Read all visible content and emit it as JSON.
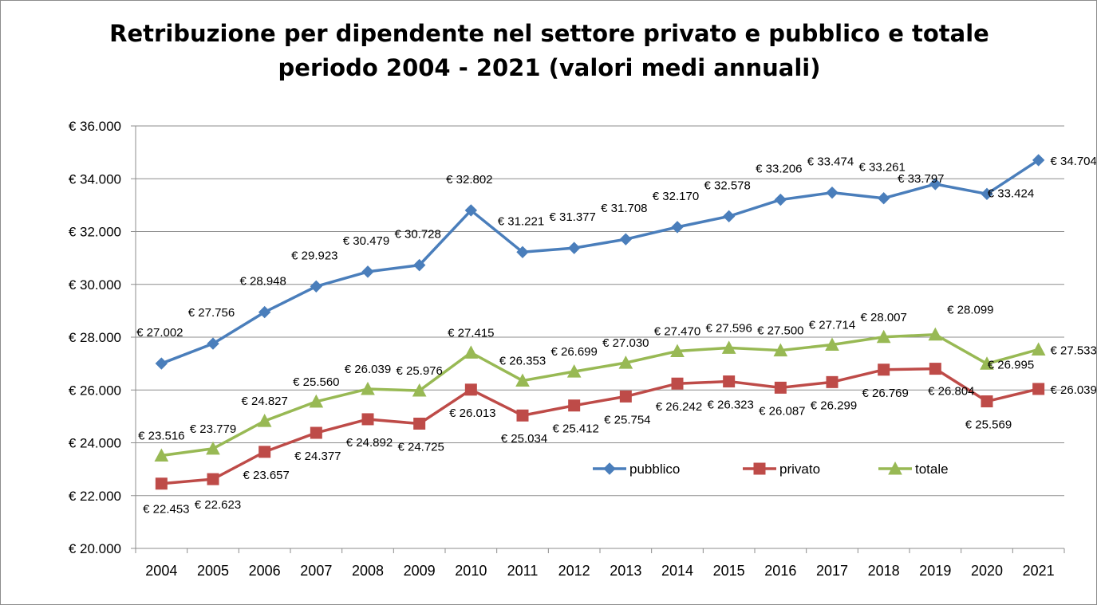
{
  "chart_data": {
    "type": "line",
    "title": [
      "Retribuzione per dipendente nel settore privato e pubblico e totale",
      "periodo 2004 - 2021 (valori medi annuali)"
    ],
    "xlabel": "",
    "ylabel": "",
    "ylim": [
      20000,
      36000
    ],
    "y_ticks": [
      {
        "value": 20000,
        "label": "€ 20.000"
      },
      {
        "value": 22000,
        "label": "€ 22.000"
      },
      {
        "value": 24000,
        "label": "€ 24.000"
      },
      {
        "value": 26000,
        "label": "€ 26.000"
      },
      {
        "value": 28000,
        "label": "€ 28.000"
      },
      {
        "value": 30000,
        "label": "€ 30.000"
      },
      {
        "value": 32000,
        "label": "€ 32.000"
      },
      {
        "value": 34000,
        "label": "€ 34.000"
      },
      {
        "value": 36000,
        "label": "€ 36.000"
      }
    ],
    "grid": true,
    "legend_position": "inside-lower-right",
    "categories": [
      "2004",
      "2005",
      "2006",
      "2007",
      "2008",
      "2009",
      "2010",
      "2011",
      "2012",
      "2013",
      "2014",
      "2015",
      "2016",
      "2017",
      "2018",
      "2019",
      "2020",
      "2021"
    ],
    "series": [
      {
        "name": "pubblico",
        "color": "#4a7ebb",
        "marker": "diamond",
        "values": [
          27002,
          27756,
          28948,
          29923,
          30479,
          30728,
          32802,
          31221,
          31377,
          31708,
          32170,
          32578,
          33206,
          33474,
          33261,
          33797,
          33424,
          34704
        ],
        "labels": [
          "€ 27.002",
          "€ 27.756",
          "€ 28.948",
          "€ 29.923",
          "€ 30.479",
          "€ 30.728",
          "€ 32.802",
          "€ 31.221",
          "€ 31.377",
          "€ 31.708",
          "€ 32.170",
          "€ 32.578",
          "€ 33.206",
          "€ 33.474",
          "€ 33.261",
          "€ 33.797",
          "€ 33.424",
          "€ 34.704"
        ]
      },
      {
        "name": "privato",
        "color": "#be4b48",
        "marker": "square",
        "values": [
          22453,
          22623,
          23657,
          24377,
          24892,
          24725,
          26013,
          25034,
          25412,
          25754,
          26242,
          26323,
          26087,
          26299,
          26769,
          26804,
          25569,
          26039
        ],
        "labels": [
          "€ 22.453",
          "€ 22.623",
          "€ 23.657",
          "€ 24.377",
          "€ 24.892",
          "€ 24.725",
          "€ 26.013",
          "€ 25.034",
          "€ 25.412",
          "€ 25.754",
          "€ 26.242",
          "€ 26.323",
          "€ 26.087",
          "€ 26.299",
          "€ 26.769",
          "€ 26.804",
          "€ 25.569",
          "€ 26.039"
        ]
      },
      {
        "name": "totale",
        "color": "#98b954",
        "marker": "triangle",
        "values": [
          23516,
          23779,
          24827,
          25560,
          26039,
          25976,
          27415,
          26353,
          26699,
          27030,
          27470,
          27596,
          27500,
          27714,
          28007,
          28099,
          26995,
          27533
        ],
        "labels": [
          "€ 23.516",
          "€ 23.779",
          "€ 24.827",
          "€ 25.560",
          "€ 26.039",
          "€ 25.976",
          "€ 27.415",
          "€ 26.353",
          "€ 26.699",
          "€ 27.030",
          "€ 27.470",
          "€ 27.596",
          "€ 27.500",
          "€ 27.714",
          "€ 28.007",
          "€ 28.099",
          "€ 26.995",
          "€ 27.533"
        ]
      }
    ]
  }
}
